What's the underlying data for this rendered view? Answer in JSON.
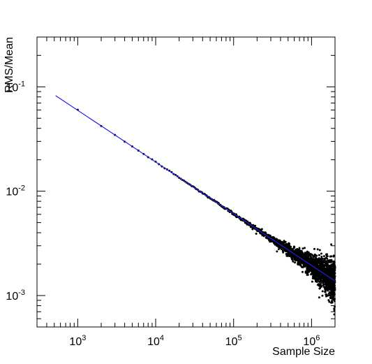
{
  "chart_data": {
    "type": "scatter",
    "title": "",
    "xlabel": "Sample Size",
    "ylabel": "RMS/Mean",
    "x_scale": "log",
    "y_scale": "log",
    "xlim": [
      300,
      2000000
    ],
    "ylim": [
      0.0005,
      0.3
    ],
    "grid": false,
    "legend": "none",
    "x_ticks": [
      {
        "value": 1000,
        "base": "10",
        "exp": "3"
      },
      {
        "value": 10000,
        "base": "10",
        "exp": "4"
      },
      {
        "value": 100000,
        "base": "10",
        "exp": "5"
      },
      {
        "value": 1000000,
        "base": "10",
        "exp": "6"
      }
    ],
    "y_ticks": [
      {
        "value": 0.001,
        "base": "10",
        "exp": "-3"
      },
      {
        "value": 0.01,
        "base": "10",
        "exp": "-2"
      },
      {
        "value": 0.1,
        "base": "10",
        "exp": "-1"
      }
    ],
    "series": [
      {
        "kind": "points",
        "color": "#000000",
        "description_of_spread": "one point per sample size, from 1000 to 2000000 in steps of 1000",
        "x_step": 1000,
        "x_max": 2000000,
        "relative_scatter": 0.12
      },
      {
        "kind": "fit-line",
        "color": "#2222dd",
        "x": [
          520,
          2000000
        ],
        "y": [
          0.0823,
          0.00138
        ]
      }
    ]
  }
}
